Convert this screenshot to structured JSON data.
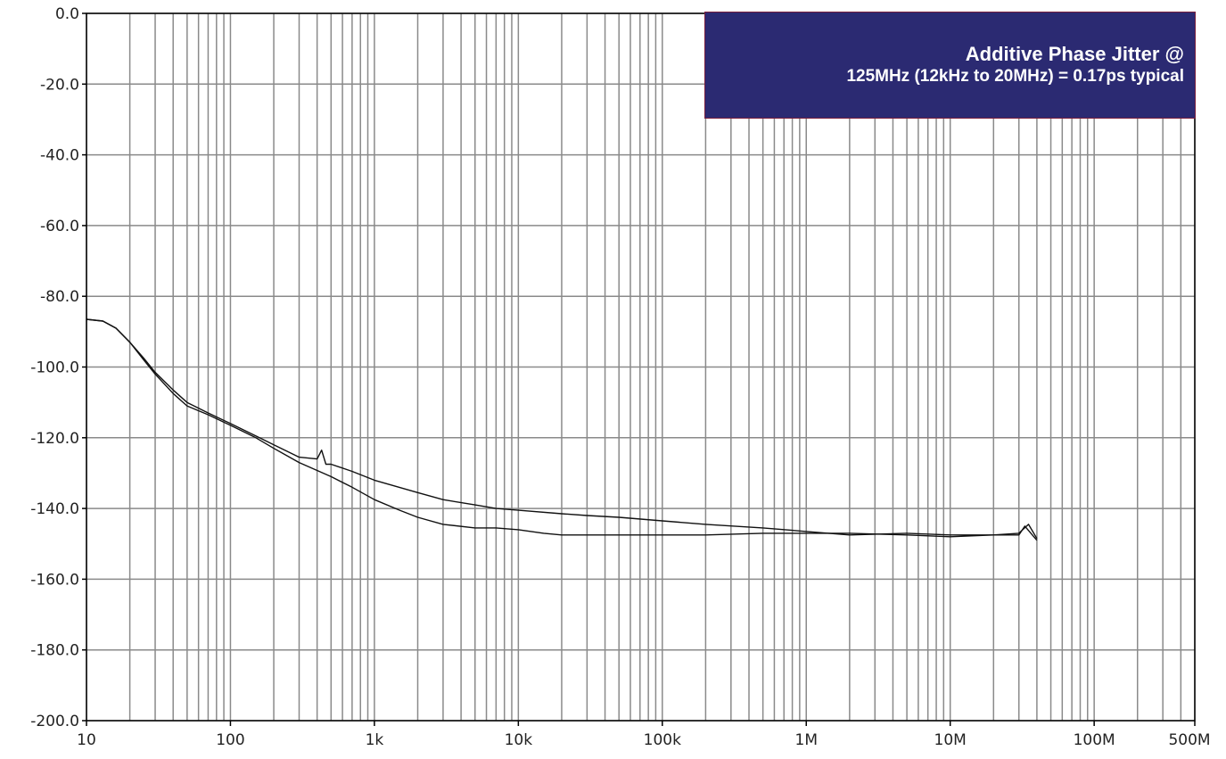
{
  "chart_data": {
    "type": "line",
    "x_scale": "log",
    "xlim": [
      10,
      500000000
    ],
    "ylim": [
      -200,
      0
    ],
    "grid": true,
    "x_ticks": [
      {
        "value": 10,
        "label": "10"
      },
      {
        "value": 100,
        "label": "100"
      },
      {
        "value": 1000,
        "label": "1k"
      },
      {
        "value": 10000,
        "label": "10k"
      },
      {
        "value": 100000,
        "label": "100k"
      },
      {
        "value": 1000000,
        "label": "1M"
      },
      {
        "value": 10000000,
        "label": "10M"
      },
      {
        "value": 100000000,
        "label": "100M"
      },
      {
        "value": 500000000,
        "label": "500M"
      }
    ],
    "y_ticks": [
      {
        "value": 0,
        "label": "0.0"
      },
      {
        "value": -20,
        "label": "-20.0"
      },
      {
        "value": -40,
        "label": "-40.0"
      },
      {
        "value": -60,
        "label": "-60.0"
      },
      {
        "value": -80,
        "label": "-80.0"
      },
      {
        "value": -100,
        "label": "-100.0"
      },
      {
        "value": -120,
        "label": "-120.0"
      },
      {
        "value": -140,
        "label": "-140.0"
      },
      {
        "value": -160,
        "label": "-160.0"
      },
      {
        "value": -180,
        "label": "-180.0"
      },
      {
        "value": -200,
        "label": "-200.0"
      }
    ],
    "annotation": {
      "line1": "Additive Phase Jitter @",
      "line2": "125MHz (12kHz to 20MHz) = 0.17ps typical",
      "background": "#2b2a72",
      "text_color": "#ffffff"
    },
    "series": [
      {
        "x": [
          10,
          13,
          16,
          20,
          25,
          30,
          40,
          50,
          70,
          100,
          150,
          200,
          300,
          400,
          430,
          460,
          500,
          700,
          1000,
          2000,
          3000,
          5000,
          7000,
          10000,
          20000,
          30000,
          50000,
          100000,
          200000,
          500000,
          1000000,
          2000000,
          5000000,
          10000000,
          20000000,
          30000000,
          33000000,
          40000000
        ],
        "y": [
          -86.5,
          -87,
          -89,
          -93,
          -97.5,
          -101.5,
          -106.5,
          -110,
          -113,
          -116,
          -119.5,
          -122,
          -125.5,
          -126,
          -123.5,
          -127.5,
          -127.5,
          -129.5,
          -132,
          -135.5,
          -137.5,
          -139,
          -140,
          -140.5,
          -141.5,
          -142,
          -142.5,
          -143.5,
          -144.5,
          -145.5,
          -146.5,
          -147.5,
          -147,
          -147.5,
          -147.5,
          -147.5,
          -145,
          -149
        ]
      },
      {
        "x": [
          10,
          13,
          16,
          20,
          25,
          30,
          40,
          50,
          70,
          100,
          150,
          200,
          300,
          500,
          700,
          1000,
          1500,
          2000,
          3000,
          5000,
          7000,
          10000,
          15000,
          20000,
          30000,
          50000,
          100000,
          200000,
          500000,
          1000000,
          2000000,
          5000000,
          10000000,
          20000000,
          30000000,
          35000000,
          40000000
        ],
        "y": [
          -86.5,
          -87,
          -89,
          -93,
          -98,
          -102,
          -107.5,
          -111,
          -113.5,
          -116.5,
          -120,
          -123,
          -127,
          -131,
          -134,
          -137.5,
          -140.5,
          -142.5,
          -144.5,
          -145.5,
          -145.5,
          -146,
          -147,
          -147.5,
          -147.5,
          -147.5,
          -147.5,
          -147.5,
          -147,
          -147,
          -147,
          -147.5,
          -148,
          -147.5,
          -147,
          -144.5,
          -148.5
        ]
      }
    ]
  }
}
